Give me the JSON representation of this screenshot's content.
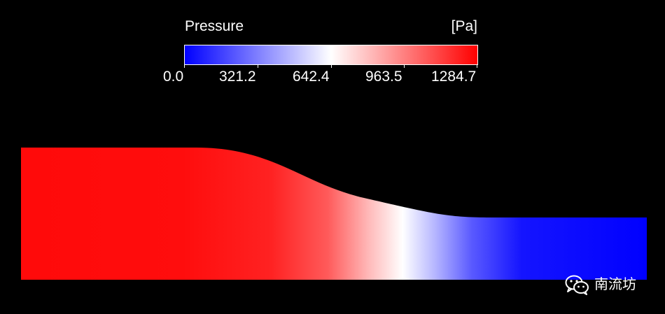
{
  "legend": {
    "title": "Pressure",
    "unit": "[Pa]",
    "min": 0.0,
    "max": 1284.7,
    "ticks": [
      "0.0",
      "321.2",
      "642.4",
      "963.5",
      "1284.7"
    ],
    "colormap": {
      "low": "#0000ff",
      "mid": "#ffffff",
      "high": "#ff0000"
    }
  },
  "field": {
    "quantity": "Pressure",
    "description_colors": {
      "inlet": "#ff0d0d",
      "outlet": "#0000ff"
    }
  },
  "watermark": {
    "icon": "wechat-icon",
    "text": "南流坊"
  }
}
